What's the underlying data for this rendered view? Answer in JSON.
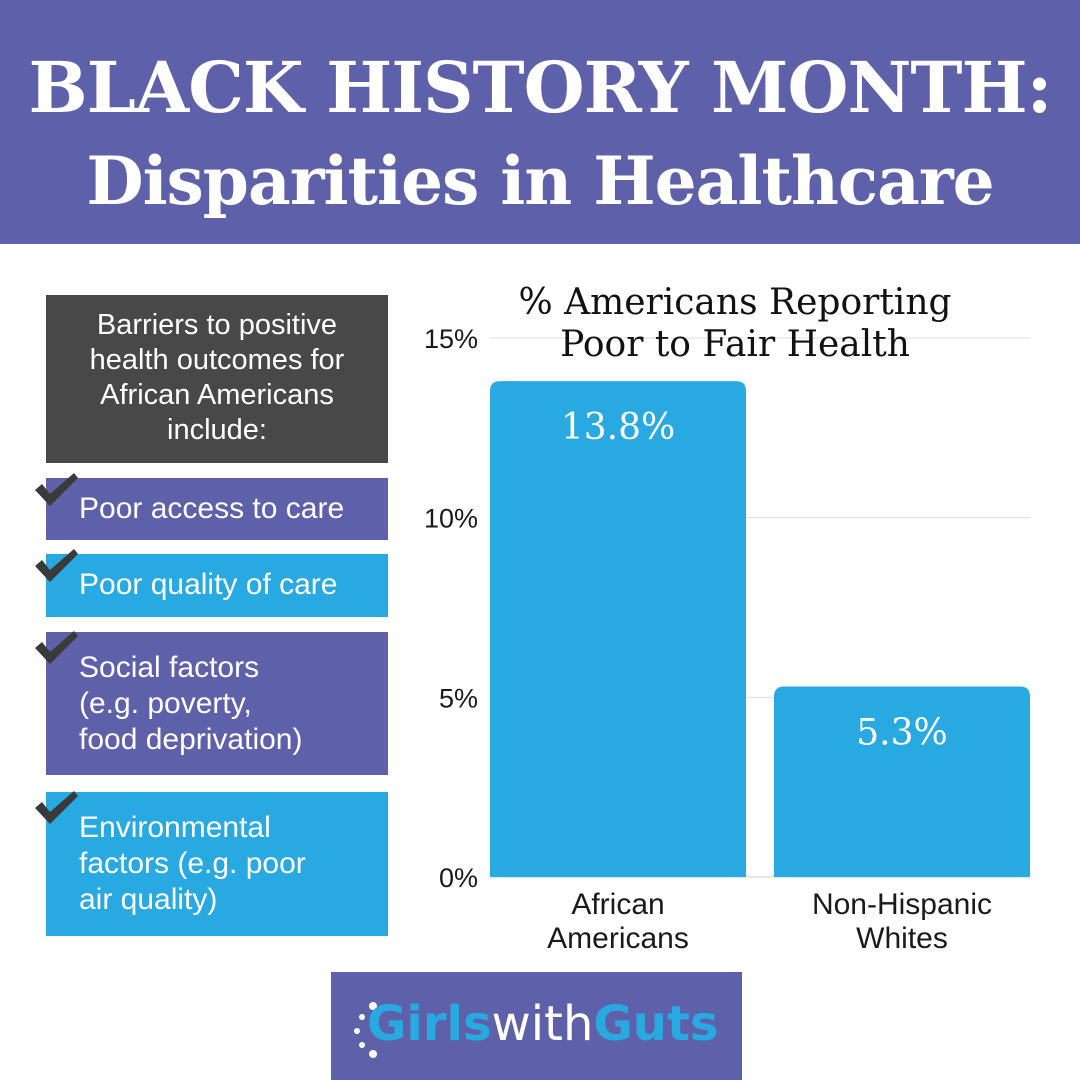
{
  "header": {
    "line1": "BLACK HISTORY MONTH:",
    "line2": "Disparities in Healthcare"
  },
  "intro": {
    "line1": "Barriers to positive",
    "line2": "health outcomes for",
    "line3": "African Americans",
    "line4": "include:"
  },
  "barriers": [
    {
      "lines": [
        "Poor access to care"
      ],
      "color": "#5e60a9",
      "icon": "checkmark-icon"
    },
    {
      "lines": [
        "Poor quality of care"
      ],
      "color": "#29a9e1",
      "icon": "checkmark-icon"
    },
    {
      "lines": [
        "Social factors",
        "(e.g. poverty,",
        "food deprivation)"
      ],
      "color": "#5e60a9",
      "icon": "checkmark-icon"
    },
    {
      "lines": [
        "Environmental",
        "factors (e.g. poor",
        "air quality)"
      ],
      "color": "#29a9e1",
      "icon": "checkmark-icon"
    }
  ],
  "chart_data": {
    "type": "bar",
    "title": "% Americans Reporting Poor to Fair Health",
    "title_lines": [
      "% Americans Reporting",
      "Poor to Fair Health"
    ],
    "categories": [
      [
        "African",
        "Americans"
      ],
      [
        "Non-Hispanic",
        "Whites"
      ]
    ],
    "values": [
      13.8,
      5.3
    ],
    "data_labels": [
      "13.8%",
      "5.3%"
    ],
    "yticks": [
      0,
      5,
      10,
      15
    ],
    "ytick_labels": [
      "0%",
      "5%",
      "10%",
      "15%"
    ],
    "ylim": [
      0,
      15
    ],
    "grid": true,
    "bar_color": "#29a9e1",
    "xlabel": "",
    "ylabel": ""
  },
  "logo": {
    "part1": "Girls",
    "part2": "with",
    "part3": "Guts"
  },
  "colors": {
    "purple": "#5e60a9",
    "blue": "#29a9e1",
    "dark": "#484848"
  }
}
